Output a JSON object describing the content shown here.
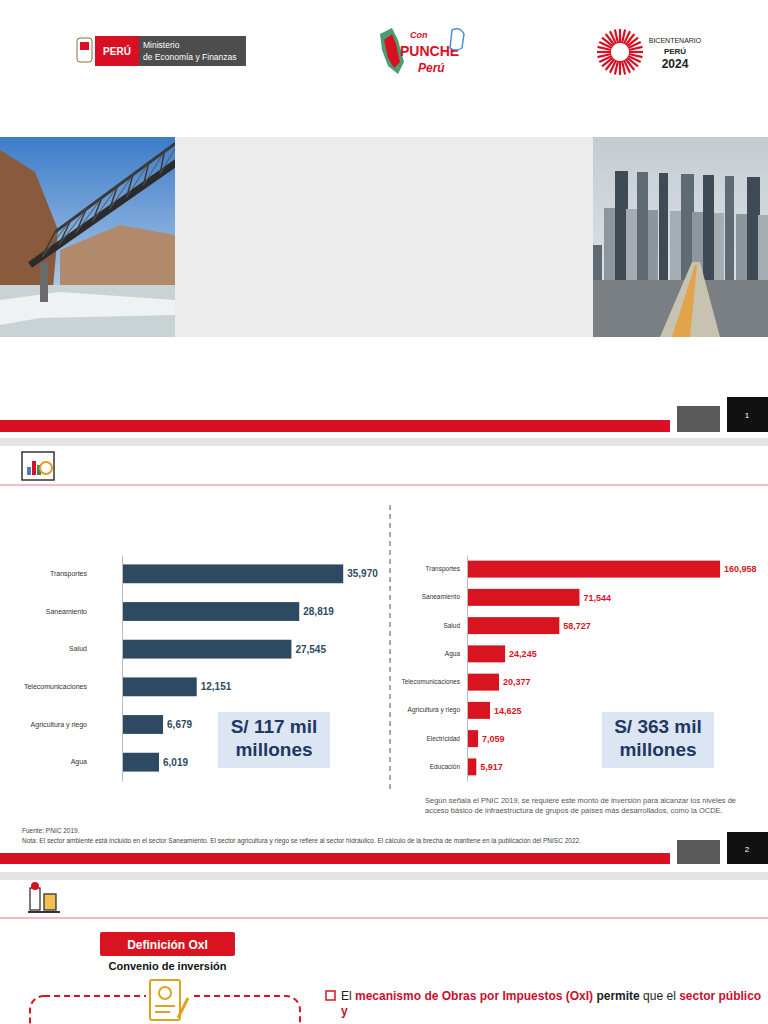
{
  "header": {
    "ministry_badge": "PERÚ",
    "ministry_name": [
      "Ministerio",
      "de Economía y Finanzas"
    ],
    "campaign_logo": [
      "Con",
      "PUNCHE",
      "Perú"
    ],
    "bicentennial": [
      "BICENTENARIO",
      "PERÚ",
      "2024"
    ]
  },
  "slide_numbers": [
    "1",
    "2"
  ],
  "chart_data": [
    {
      "type": "bar",
      "orientation": "horizontal",
      "categories": [
        "Transportes",
        "Saneamiento",
        "Salud",
        "Telecomunicaciones",
        "Agricultura y riego",
        "Agua"
      ],
      "values": [
        35970,
        28819,
        27545,
        12151,
        6679,
        6019
      ],
      "value_labels": [
        "35,970",
        "28,819",
        "27,545",
        "12,151",
        "6,679",
        "6,019"
      ],
      "color": "#2e4a62",
      "xlim": [
        0,
        40000
      ],
      "data_labels": true,
      "tick_labels": "y",
      "annotation": "S/ 117 mil millones"
    },
    {
      "type": "bar",
      "orientation": "horizontal",
      "categories": [
        "Transportes",
        "Saneamiento",
        "Salud",
        "Agua",
        "Telecomunicaciones",
        "Agricultura y riego",
        "Electricidad",
        "Educación"
      ],
      "values": [
        160958,
        71544,
        58727,
        24245,
        20377,
        14625,
        7059,
        5917
      ],
      "value_labels": [
        "160,958",
        "71,544",
        "58,727",
        "24,245",
        "20,377",
        "14,625",
        "7,059",
        "5,917"
      ],
      "color": "#d7141f",
      "xlim": [
        0,
        180000
      ],
      "data_labels": true,
      "tick_labels": "y",
      "annotation": "S/ 363 mil millones",
      "note": "Según señala el PNIC 2019, se requiere este monto de inversión para alcanzar los niveles de acceso básico de infraestructura de grupos de países más desarrollados, como la OCDE."
    }
  ],
  "source": "Fuente: PNIC 2019.",
  "footnote": "Nota: El sector ambiente está incluido en el sector Saneamiento. El sector agricultura y riego se refiere al sector hidráulico. El cálculo de la brecha de mantiene en la publicación del PNISC 2022.",
  "section": {
    "badge": "Definición OxI",
    "subtitle": "Convenio de inversión",
    "text": [
      {
        "text": "El ",
        "style": "plain"
      },
      {
        "text": "mecanismo de Obras por Impuestos (OxI)",
        "style": "highlight"
      },
      {
        "text": " permite",
        "style": "bold"
      },
      {
        "text": " que el ",
        "style": "plain"
      },
      {
        "text": "sector público y",
        "style": "highlight"
      }
    ]
  }
}
